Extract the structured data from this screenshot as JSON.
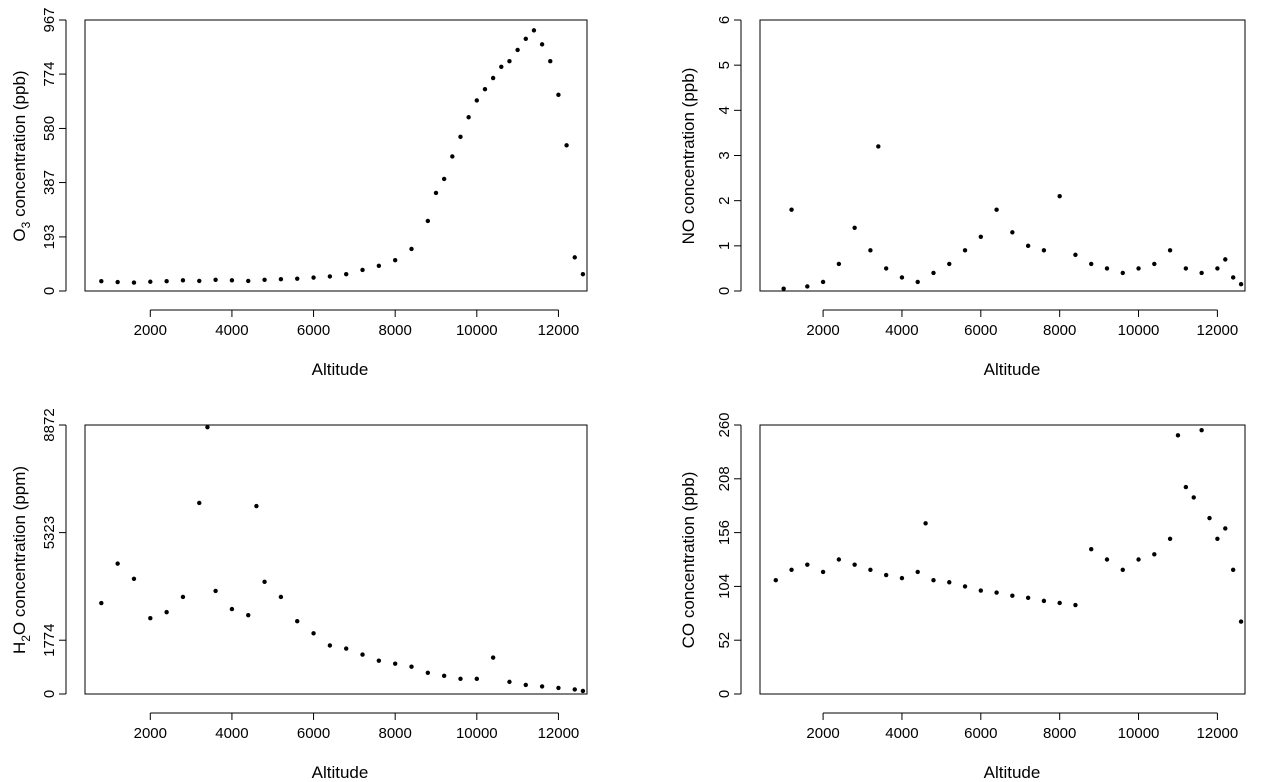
{
  "chart_data": [
    {
      "type": "scatter",
      "xlabel": "Altitude",
      "ylabel": "O",
      "ylabel_sub": "3",
      "ylabel_rest": " concentration (ppb)",
      "xlim": [
        400,
        12700
      ],
      "ylim": [
        0,
        967
      ],
      "xticks": [
        2000,
        4000,
        6000,
        8000,
        10000,
        12000
      ],
      "yticks": [
        0,
        193,
        387,
        580,
        774,
        967
      ],
      "grid": false,
      "color": "#000000",
      "series": [
        {
          "x": [
            800,
            1200,
            1600,
            2000,
            2400,
            2800,
            3200,
            3600,
            4000,
            4400,
            4800,
            5200,
            5600,
            6000,
            6400,
            6800,
            7200,
            7600,
            8000,
            8400,
            8800,
            9000,
            9200,
            9400,
            9600,
            9800,
            10000,
            10200,
            10400,
            10600,
            10800,
            11000,
            11200,
            11400,
            11600,
            11800,
            12000,
            12200,
            12400,
            12600
          ],
          "y": [
            35,
            32,
            30,
            33,
            35,
            38,
            36,
            40,
            38,
            36,
            40,
            42,
            44,
            48,
            52,
            60,
            75,
            90,
            110,
            150,
            250,
            350,
            400,
            480,
            550,
            620,
            680,
            720,
            760,
            800,
            820,
            860,
            900,
            930,
            880,
            820,
            700,
            520,
            120,
            60
          ]
        }
      ]
    },
    {
      "type": "scatter",
      "xlabel": "Altitude",
      "ylabel": "NO concentration (ppb)",
      "xlim": [
        400,
        12700
      ],
      "ylim": [
        0,
        6
      ],
      "xticks": [
        2000,
        4000,
        6000,
        8000,
        10000,
        12000
      ],
      "yticks": [
        0,
        1,
        2,
        3,
        4,
        5,
        6
      ],
      "grid": false,
      "color": "#000000",
      "series": [
        {
          "x": [
            1000,
            1200,
            1600,
            2000,
            2400,
            2800,
            3200,
            3400,
            3600,
            4000,
            4400,
            4800,
            5200,
            5600,
            6000,
            6400,
            6800,
            7200,
            7600,
            8000,
            8400,
            8800,
            9200,
            9600,
            10000,
            10400,
            10800,
            11200,
            11600,
            12000,
            12200,
            12400,
            12600
          ],
          "y": [
            0.05,
            1.8,
            0.1,
            0.2,
            0.6,
            1.4,
            0.9,
            3.2,
            0.5,
            0.3,
            0.2,
            0.4,
            0.6,
            0.9,
            1.2,
            1.8,
            1.3,
            1.0,
            0.9,
            2.1,
            0.8,
            0.6,
            0.5,
            0.4,
            0.5,
            0.6,
            0.9,
            0.5,
            0.4,
            0.5,
            0.7,
            0.3,
            0.15
          ]
        }
      ]
    },
    {
      "type": "scatter",
      "xlabel": "Altitude",
      "ylabel": "H",
      "ylabel_sub": "2",
      "ylabel_rest": "O concentration (ppm)",
      "xlim": [
        400,
        12700
      ],
      "ylim": [
        0,
        8872
      ],
      "xticks": [
        2000,
        4000,
        6000,
        8000,
        10000,
        12000
      ],
      "yticks": [
        0,
        1774,
        5323,
        8872
      ],
      "grid": false,
      "color": "#000000",
      "series": [
        {
          "x": [
            800,
            1200,
            1600,
            2000,
            2400,
            2800,
            3200,
            3400,
            3600,
            4000,
            4400,
            4600,
            4800,
            5200,
            5600,
            6000,
            6400,
            6800,
            7200,
            7600,
            8000,
            8400,
            8800,
            9200,
            9600,
            10000,
            10400,
            10800,
            11200,
            11600,
            12000,
            12400,
            12600
          ],
          "y": [
            3000,
            4300,
            3800,
            2500,
            2700,
            3200,
            6300,
            8800,
            3400,
            2800,
            2600,
            6200,
            3700,
            3200,
            2400,
            2000,
            1600,
            1500,
            1300,
            1100,
            1000,
            900,
            700,
            600,
            500,
            500,
            1200,
            400,
            300,
            250,
            200,
            150,
            100
          ]
        }
      ]
    },
    {
      "type": "scatter",
      "xlabel": "Altitude",
      "ylabel": "CO concentration (ppb)",
      "xlim": [
        400,
        12700
      ],
      "ylim": [
        0,
        260
      ],
      "xticks": [
        2000,
        4000,
        6000,
        8000,
        10000,
        12000
      ],
      "yticks": [
        0,
        52,
        104,
        156,
        208,
        260
      ],
      "grid": false,
      "color": "#000000",
      "series": [
        {
          "x": [
            800,
            1200,
            1600,
            2000,
            2400,
            2800,
            3200,
            3600,
            4000,
            4400,
            4600,
            4800,
            5200,
            5600,
            6000,
            6400,
            6800,
            7200,
            7600,
            8000,
            8400,
            8800,
            9200,
            9600,
            10000,
            10400,
            10800,
            11000,
            11200,
            11400,
            11600,
            11800,
            12000,
            12200,
            12400,
            12600
          ],
          "y": [
            110,
            120,
            125,
            118,
            130,
            125,
            120,
            115,
            112,
            118,
            165,
            110,
            108,
            104,
            100,
            98,
            95,
            93,
            90,
            88,
            86,
            140,
            130,
            120,
            130,
            135,
            150,
            250,
            200,
            190,
            255,
            170,
            150,
            160,
            120,
            70
          ]
        }
      ]
    }
  ]
}
